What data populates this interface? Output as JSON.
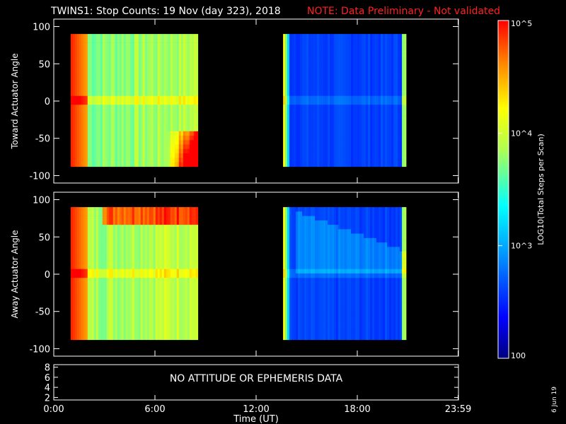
{
  "title": {
    "main": "TWINS1: Stop Counts: 19 Nov (day 323), 2018",
    "note": "NOTE: Data Preliminary - Not validated"
  },
  "chart_data": [
    {
      "type": "heatmap",
      "name": "toward-panel",
      "ylabel": "Toward Actuator Angle",
      "xlim": [
        0,
        24
      ],
      "ylim": [
        -110,
        110
      ],
      "yticks": [
        "-100",
        "-50",
        "0",
        "50",
        "100"
      ],
      "ytick_values": [
        -100,
        -50,
        0,
        50,
        100
      ],
      "data_ranges_hours": [
        [
          1.0,
          8.5
        ],
        [
          13.6,
          20.9
        ]
      ],
      "data_angle_range": [
        -88,
        90
      ],
      "levels_log10": {
        "segment1_base": 3.7,
        "segment2_base": 2.6,
        "segment1_left_edge": 4.9
      }
    },
    {
      "type": "heatmap",
      "name": "away-panel",
      "ylabel": "Away Actuator Angle",
      "xlim": [
        0,
        24
      ],
      "ylim": [
        -110,
        110
      ],
      "yticks": [
        "-100",
        "-50",
        "0",
        "50",
        "100"
      ],
      "ytick_values": [
        -100,
        -50,
        0,
        50,
        100
      ],
      "data_ranges_hours": [
        [
          1.0,
          8.5
        ],
        [
          13.6,
          20.9
        ]
      ],
      "data_angle_range": [
        -88,
        90
      ],
      "levels_log10": {
        "segment1_base": 3.8,
        "segment2_base": 2.6,
        "segment1_left_edge": 4.9
      }
    },
    {
      "type": "line",
      "name": "attitude-panel",
      "message": "NO ATTITUDE OR EPHEMERIS DATA",
      "yticks": [
        "2",
        "4",
        "6",
        "8"
      ],
      "ytick_values": [
        2,
        4,
        6,
        8
      ],
      "ylim": [
        1.5,
        8.5
      ]
    }
  ],
  "xaxis": {
    "label": "Time (UT)",
    "ticks": [
      "0:00",
      "6:00",
      "12:00",
      "18:00",
      "23:59"
    ],
    "tick_hours": [
      0,
      6,
      12,
      18,
      23.98
    ]
  },
  "colorbar": {
    "label": "LOG10(Total Steps per Scan)",
    "ticks": [
      "10^5",
      "10^4",
      "10^3",
      "100"
    ],
    "tick_values_log10": [
      5,
      4,
      3,
      2
    ],
    "range_log10": [
      2,
      5
    ],
    "colormap": "rainbow"
  },
  "date_stamp": "6 Jun 19"
}
